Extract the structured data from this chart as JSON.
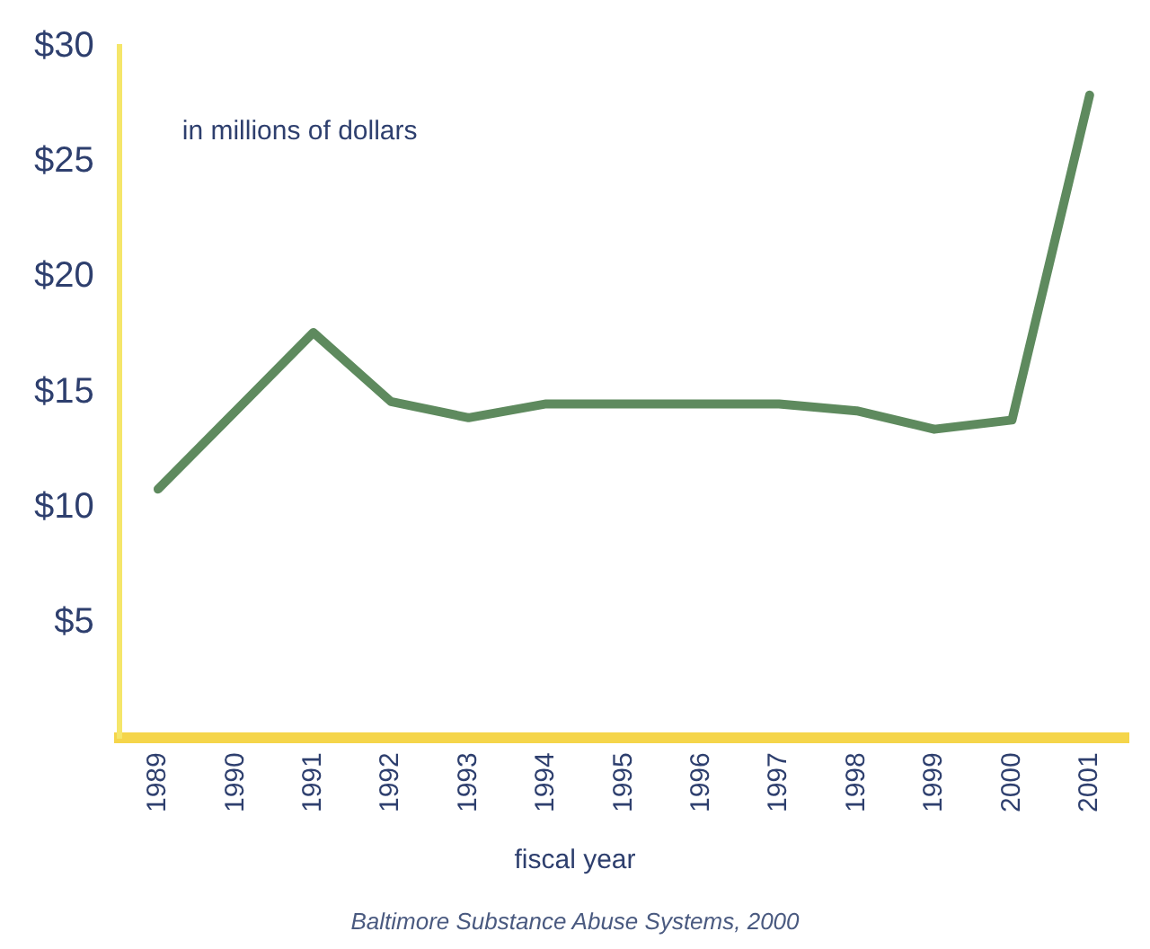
{
  "chart_data": {
    "type": "line",
    "xlabel": "fiscal year",
    "ylabel": "in millions of dollars",
    "categories": [
      "1989",
      "1990",
      "1991",
      "1992",
      "1993",
      "1994",
      "1995",
      "1996",
      "1997",
      "1998",
      "1999",
      "2000",
      "2001"
    ],
    "series": [
      {
        "color": "#5e8a5e",
        "values": [
          10.8,
          14.2,
          17.6,
          14.6,
          13.9,
          14.5,
          14.5,
          14.5,
          14.5,
          14.2,
          13.4,
          13.8,
          27.9
        ]
      }
    ],
    "ylim": [
      0,
      30
    ],
    "yticks": [
      {
        "value": 5,
        "label": "$5"
      },
      {
        "value": 10,
        "label": "$10"
      },
      {
        "value": 15,
        "label": "$15"
      },
      {
        "value": 20,
        "label": "$20"
      },
      {
        "value": 25,
        "label": "$25"
      },
      {
        "value": 30,
        "label": "$30"
      }
    ],
    "grid": false,
    "legend": false,
    "marker": "none",
    "line_style": "solid",
    "annotations": [
      "Baltimore Substance Abuse Systems, 2000"
    ]
  }
}
